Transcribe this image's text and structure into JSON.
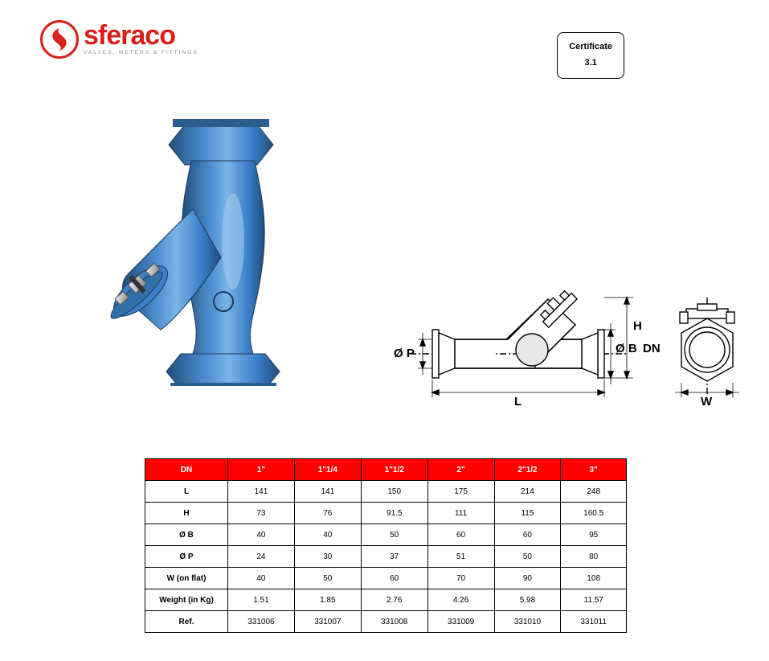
{
  "logo": {
    "brand": "sferaco",
    "tagline": "VALVES, METERS & FITTINGS",
    "color": "#d91e18"
  },
  "certificate": {
    "title": "Certificate",
    "value": "3.1"
  },
  "product_image": {
    "body_color": "#3a7fc9",
    "shadow_color": "#1f4e7a",
    "highlight_color": "#7ab4e6",
    "bolt_color": "#c0c0c0"
  },
  "diagram": {
    "stroke": "#000000",
    "fill": "#ffffff",
    "ball_fill": "#e8e8e8",
    "labels": {
      "H": "H",
      "OP": "Ø P",
      "OB": "Ø B",
      "DN": "DN",
      "L": "L",
      "W": "W"
    }
  },
  "table": {
    "header_bg": "#ff0000",
    "header_fg": "#ffffff",
    "border": "#000000",
    "columns": [
      "DN",
      "1\"",
      "1\"1/4",
      "1\"1/2",
      "2\"",
      "2\"1/2",
      "3\""
    ],
    "rows": [
      {
        "label": "L",
        "values": [
          "141",
          "141",
          "150",
          "175",
          "214",
          "248"
        ]
      },
      {
        "label": "H",
        "values": [
          "73",
          "76",
          "91.5",
          "111",
          "115",
          "160.5"
        ]
      },
      {
        "label": "Ø B",
        "values": [
          "40",
          "40",
          "50",
          "60",
          "60",
          "95"
        ]
      },
      {
        "label": "Ø P",
        "values": [
          "24",
          "30",
          "37",
          "51",
          "50",
          "80"
        ]
      },
      {
        "label": "W (on flat)",
        "values": [
          "40",
          "50",
          "60",
          "70",
          "90",
          "108"
        ]
      },
      {
        "label": "Weight (in Kg)",
        "values": [
          "1.51",
          "1.85",
          "2.76",
          "4.26",
          "5.98",
          "11.57"
        ]
      },
      {
        "label": "Ref.",
        "values": [
          "331006",
          "331007",
          "331008",
          "331009",
          "331010",
          "331011"
        ]
      }
    ]
  }
}
